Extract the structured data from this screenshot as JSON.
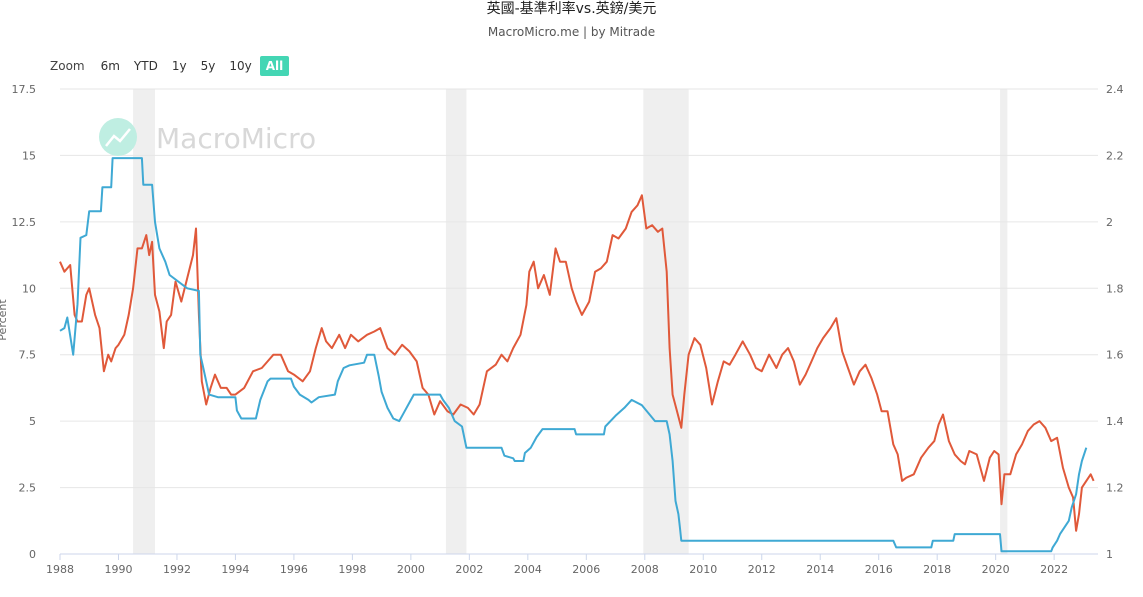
{
  "header": {
    "title": "英國-基準利率vs.英鎊/美元",
    "subtitle": "MacroMicro.me | by Mitrade"
  },
  "zoom": {
    "label": "Zoom",
    "options": [
      "6m",
      "YTD",
      "1y",
      "5y",
      "10y",
      "All"
    ],
    "selected": "All"
  },
  "watermark": {
    "text": "MacroMicro"
  },
  "colors": {
    "rate": "#3fa9d4",
    "fx": "#e0593a",
    "shade": "#efefef",
    "grid": "#e6e6e6"
  },
  "chart_data": {
    "type": "line",
    "title": "英國-基準利率vs.英鎊/美元",
    "xlabel": "",
    "ylabel": "Percent",
    "xlim": [
      1988,
      2023.5
    ],
    "ylim_left": [
      0,
      17.5
    ],
    "ylim_right": [
      1.0,
      2.4
    ],
    "x_ticks": [
      1988,
      1990,
      1992,
      1994,
      1996,
      1998,
      2000,
      2002,
      2004,
      2006,
      2008,
      2010,
      2012,
      2014,
      2016,
      2018,
      2020,
      2022
    ],
    "y_ticks_left": [
      "0",
      "2.5",
      "5",
      "7.5",
      "10",
      "12.5",
      "15",
      "17.5"
    ],
    "y_ticks_right": [
      "1",
      "1.2",
      "1.4",
      "1.6",
      "1.8",
      "2",
      "2.2",
      "2.4"
    ],
    "recessions": [
      [
        1990.5,
        1991.25
      ],
      [
        2001.2,
        2001.9
      ],
      [
        2007.95,
        2009.5
      ],
      [
        2020.15,
        2020.4
      ]
    ],
    "series": [
      {
        "name": "英國-基準利率",
        "axis": "left",
        "points": [
          [
            1988.0,
            8.4
          ],
          [
            1988.15,
            8.5
          ],
          [
            1988.25,
            8.9
          ],
          [
            1988.45,
            7.5
          ],
          [
            1988.6,
            9.4
          ],
          [
            1988.7,
            11.9
          ],
          [
            1988.9,
            12.0
          ],
          [
            1989.0,
            12.9
          ],
          [
            1989.4,
            12.9
          ],
          [
            1989.45,
            13.8
          ],
          [
            1989.75,
            13.8
          ],
          [
            1989.8,
            14.9
          ],
          [
            1990.8,
            14.9
          ],
          [
            1990.85,
            13.9
          ],
          [
            1991.15,
            13.9
          ],
          [
            1991.25,
            12.5
          ],
          [
            1991.4,
            11.5
          ],
          [
            1991.6,
            11.0
          ],
          [
            1991.75,
            10.5
          ],
          [
            1992.35,
            10.0
          ],
          [
            1992.75,
            9.9
          ],
          [
            1992.8,
            7.5
          ],
          [
            1992.9,
            7.0
          ],
          [
            1993.1,
            6.0
          ],
          [
            1993.4,
            5.9
          ],
          [
            1994.0,
            5.9
          ],
          [
            1994.05,
            5.4
          ],
          [
            1994.2,
            5.1
          ],
          [
            1994.7,
            5.1
          ],
          [
            1994.85,
            5.8
          ],
          [
            1995.1,
            6.5
          ],
          [
            1995.2,
            6.6
          ],
          [
            1995.9,
            6.6
          ],
          [
            1996.0,
            6.3
          ],
          [
            1996.2,
            6.0
          ],
          [
            1996.5,
            5.8
          ],
          [
            1996.6,
            5.7
          ],
          [
            1996.85,
            5.9
          ],
          [
            1997.4,
            6.0
          ],
          [
            1997.5,
            6.5
          ],
          [
            1997.7,
            7.0
          ],
          [
            1997.9,
            7.1
          ],
          [
            1998.4,
            7.2
          ],
          [
            1998.5,
            7.5
          ],
          [
            1998.75,
            7.5
          ],
          [
            1998.9,
            6.7
          ],
          [
            1999.0,
            6.1
          ],
          [
            1999.2,
            5.5
          ],
          [
            1999.4,
            5.1
          ],
          [
            1999.6,
            5.0
          ],
          [
            1999.75,
            5.3
          ],
          [
            2000.0,
            5.8
          ],
          [
            2000.1,
            6.0
          ],
          [
            2001.0,
            6.0
          ],
          [
            2001.1,
            5.8
          ],
          [
            2001.3,
            5.5
          ],
          [
            2001.5,
            5.0
          ],
          [
            2001.75,
            4.8
          ],
          [
            2001.9,
            4.0
          ],
          [
            2003.1,
            4.0
          ],
          [
            2003.2,
            3.7
          ],
          [
            2003.5,
            3.6
          ],
          [
            2003.55,
            3.5
          ],
          [
            2003.85,
            3.5
          ],
          [
            2003.9,
            3.8
          ],
          [
            2004.1,
            4.0
          ],
          [
            2004.3,
            4.4
          ],
          [
            2004.5,
            4.7
          ],
          [
            2005.6,
            4.7
          ],
          [
            2005.65,
            4.5
          ],
          [
            2006.6,
            4.5
          ],
          [
            2006.65,
            4.8
          ],
          [
            2007.0,
            5.2
          ],
          [
            2007.3,
            5.5
          ],
          [
            2007.55,
            5.8
          ],
          [
            2007.9,
            5.6
          ],
          [
            2008.2,
            5.2
          ],
          [
            2008.35,
            5.0
          ],
          [
            2008.75,
            5.0
          ],
          [
            2008.85,
            4.5
          ],
          [
            2008.95,
            3.5
          ],
          [
            2009.05,
            2.0
          ],
          [
            2009.15,
            1.5
          ],
          [
            2009.2,
            1.0
          ],
          [
            2009.25,
            0.5
          ],
          [
            2016.5,
            0.5
          ],
          [
            2016.6,
            0.25
          ],
          [
            2017.8,
            0.25
          ],
          [
            2017.85,
            0.5
          ],
          [
            2018.55,
            0.5
          ],
          [
            2018.6,
            0.75
          ],
          [
            2020.15,
            0.75
          ],
          [
            2020.2,
            0.1
          ],
          [
            2021.9,
            0.1
          ],
          [
            2021.95,
            0.25
          ],
          [
            2022.1,
            0.5
          ],
          [
            2022.2,
            0.75
          ],
          [
            2022.35,
            1.0
          ],
          [
            2022.5,
            1.25
          ],
          [
            2022.6,
            1.75
          ],
          [
            2022.75,
            2.25
          ],
          [
            2022.85,
            3.0
          ],
          [
            2022.95,
            3.5
          ],
          [
            2023.1,
            4.0
          ]
        ]
      },
      {
        "name": "英鎊/美元",
        "axis": "right",
        "points": [
          [
            1988.0,
            1.88
          ],
          [
            1988.15,
            1.85
          ],
          [
            1988.35,
            1.87
          ],
          [
            1988.5,
            1.72
          ],
          [
            1988.6,
            1.7
          ],
          [
            1988.75,
            1.7
          ],
          [
            1988.9,
            1.78
          ],
          [
            1989.0,
            1.8
          ],
          [
            1989.2,
            1.72
          ],
          [
            1989.35,
            1.68
          ],
          [
            1989.5,
            1.55
          ],
          [
            1989.65,
            1.6
          ],
          [
            1989.75,
            1.58
          ],
          [
            1989.9,
            1.62
          ],
          [
            1990.0,
            1.63
          ],
          [
            1990.2,
            1.66
          ],
          [
            1990.35,
            1.72
          ],
          [
            1990.5,
            1.8
          ],
          [
            1990.65,
            1.92
          ],
          [
            1990.8,
            1.92
          ],
          [
            1990.95,
            1.96
          ],
          [
            1991.05,
            1.9
          ],
          [
            1991.15,
            1.94
          ],
          [
            1991.25,
            1.78
          ],
          [
            1991.4,
            1.73
          ],
          [
            1991.55,
            1.62
          ],
          [
            1991.65,
            1.7
          ],
          [
            1991.8,
            1.72
          ],
          [
            1991.95,
            1.82
          ],
          [
            1992.15,
            1.76
          ],
          [
            1992.35,
            1.83
          ],
          [
            1992.55,
            1.9
          ],
          [
            1992.65,
            1.98
          ],
          [
            1992.75,
            1.72
          ],
          [
            1992.85,
            1.52
          ],
          [
            1993.0,
            1.45
          ],
          [
            1993.15,
            1.5
          ],
          [
            1993.3,
            1.54
          ],
          [
            1993.5,
            1.5
          ],
          [
            1993.7,
            1.5
          ],
          [
            1993.85,
            1.48
          ],
          [
            1994.0,
            1.48
          ],
          [
            1994.3,
            1.5
          ],
          [
            1994.6,
            1.55
          ],
          [
            1994.9,
            1.56
          ],
          [
            1995.1,
            1.58
          ],
          [
            1995.3,
            1.6
          ],
          [
            1995.55,
            1.6
          ],
          [
            1995.8,
            1.55
          ],
          [
            1996.0,
            1.54
          ],
          [
            1996.3,
            1.52
          ],
          [
            1996.55,
            1.55
          ],
          [
            1996.75,
            1.62
          ],
          [
            1996.95,
            1.68
          ],
          [
            1997.1,
            1.64
          ],
          [
            1997.3,
            1.62
          ],
          [
            1997.55,
            1.66
          ],
          [
            1997.75,
            1.62
          ],
          [
            1997.95,
            1.66
          ],
          [
            1998.2,
            1.64
          ],
          [
            1998.5,
            1.66
          ],
          [
            1998.75,
            1.67
          ],
          [
            1998.95,
            1.68
          ],
          [
            1999.2,
            1.62
          ],
          [
            1999.45,
            1.6
          ],
          [
            1999.7,
            1.63
          ],
          [
            1999.95,
            1.61
          ],
          [
            2000.2,
            1.58
          ],
          [
            2000.4,
            1.5
          ],
          [
            2000.6,
            1.48
          ],
          [
            2000.8,
            1.42
          ],
          [
            2001.0,
            1.46
          ],
          [
            2001.25,
            1.43
          ],
          [
            2001.45,
            1.42
          ],
          [
            2001.7,
            1.45
          ],
          [
            2001.95,
            1.44
          ],
          [
            2002.15,
            1.42
          ],
          [
            2002.35,
            1.45
          ],
          [
            2002.6,
            1.55
          ],
          [
            2002.9,
            1.57
          ],
          [
            2003.1,
            1.6
          ],
          [
            2003.3,
            1.58
          ],
          [
            2003.5,
            1.62
          ],
          [
            2003.75,
            1.66
          ],
          [
            2003.95,
            1.75
          ],
          [
            2004.05,
            1.85
          ],
          [
            2004.2,
            1.88
          ],
          [
            2004.35,
            1.8
          ],
          [
            2004.55,
            1.84
          ],
          [
            2004.75,
            1.78
          ],
          [
            2004.95,
            1.92
          ],
          [
            2005.1,
            1.88
          ],
          [
            2005.3,
            1.88
          ],
          [
            2005.5,
            1.8
          ],
          [
            2005.65,
            1.76
          ],
          [
            2005.85,
            1.72
          ],
          [
            2006.1,
            1.76
          ],
          [
            2006.3,
            1.85
          ],
          [
            2006.5,
            1.86
          ],
          [
            2006.7,
            1.88
          ],
          [
            2006.9,
            1.96
          ],
          [
            2007.1,
            1.95
          ],
          [
            2007.35,
            1.98
          ],
          [
            2007.55,
            2.03
          ],
          [
            2007.75,
            2.05
          ],
          [
            2007.9,
            2.08
          ],
          [
            2008.05,
            1.98
          ],
          [
            2008.25,
            1.99
          ],
          [
            2008.45,
            1.97
          ],
          [
            2008.6,
            1.98
          ],
          [
            2008.75,
            1.85
          ],
          [
            2008.85,
            1.62
          ],
          [
            2008.95,
            1.48
          ],
          [
            2009.1,
            1.43
          ],
          [
            2009.25,
            1.38
          ],
          [
            2009.35,
            1.48
          ],
          [
            2009.5,
            1.6
          ],
          [
            2009.7,
            1.65
          ],
          [
            2009.9,
            1.63
          ],
          [
            2010.1,
            1.56
          ],
          [
            2010.3,
            1.45
          ],
          [
            2010.5,
            1.52
          ],
          [
            2010.7,
            1.58
          ],
          [
            2010.9,
            1.57
          ],
          [
            2011.1,
            1.6
          ],
          [
            2011.35,
            1.64
          ],
          [
            2011.6,
            1.6
          ],
          [
            2011.8,
            1.56
          ],
          [
            2012.0,
            1.55
          ],
          [
            2012.25,
            1.6
          ],
          [
            2012.5,
            1.56
          ],
          [
            2012.7,
            1.6
          ],
          [
            2012.9,
            1.62
          ],
          [
            2013.1,
            1.58
          ],
          [
            2013.3,
            1.51
          ],
          [
            2013.5,
            1.54
          ],
          [
            2013.7,
            1.58
          ],
          [
            2013.9,
            1.62
          ],
          [
            2014.1,
            1.65
          ],
          [
            2014.35,
            1.68
          ],
          [
            2014.55,
            1.71
          ],
          [
            2014.75,
            1.61
          ],
          [
            2014.95,
            1.56
          ],
          [
            2015.15,
            1.51
          ],
          [
            2015.35,
            1.55
          ],
          [
            2015.55,
            1.57
          ],
          [
            2015.75,
            1.53
          ],
          [
            2015.95,
            1.48
          ],
          [
            2016.1,
            1.43
          ],
          [
            2016.3,
            1.43
          ],
          [
            2016.5,
            1.33
          ],
          [
            2016.65,
            1.3
          ],
          [
            2016.8,
            1.22
          ],
          [
            2016.95,
            1.23
          ],
          [
            2017.2,
            1.24
          ],
          [
            2017.45,
            1.29
          ],
          [
            2017.7,
            1.32
          ],
          [
            2017.9,
            1.34
          ],
          [
            2018.05,
            1.39
          ],
          [
            2018.2,
            1.42
          ],
          [
            2018.4,
            1.34
          ],
          [
            2018.6,
            1.3
          ],
          [
            2018.8,
            1.28
          ],
          [
            2018.95,
            1.27
          ],
          [
            2019.1,
            1.31
          ],
          [
            2019.35,
            1.3
          ],
          [
            2019.6,
            1.22
          ],
          [
            2019.8,
            1.29
          ],
          [
            2019.95,
            1.31
          ],
          [
            2020.1,
            1.3
          ],
          [
            2020.2,
            1.15
          ],
          [
            2020.3,
            1.24
          ],
          [
            2020.5,
            1.24
          ],
          [
            2020.7,
            1.3
          ],
          [
            2020.9,
            1.33
          ],
          [
            2021.1,
            1.37
          ],
          [
            2021.3,
            1.39
          ],
          [
            2021.5,
            1.4
          ],
          [
            2021.7,
            1.38
          ],
          [
            2021.9,
            1.34
          ],
          [
            2022.1,
            1.35
          ],
          [
            2022.3,
            1.26
          ],
          [
            2022.5,
            1.2
          ],
          [
            2022.65,
            1.17
          ],
          [
            2022.75,
            1.07
          ],
          [
            2022.85,
            1.12
          ],
          [
            2022.95,
            1.2
          ],
          [
            2023.1,
            1.22
          ],
          [
            2023.25,
            1.24
          ],
          [
            2023.35,
            1.22
          ]
        ]
      }
    ]
  }
}
